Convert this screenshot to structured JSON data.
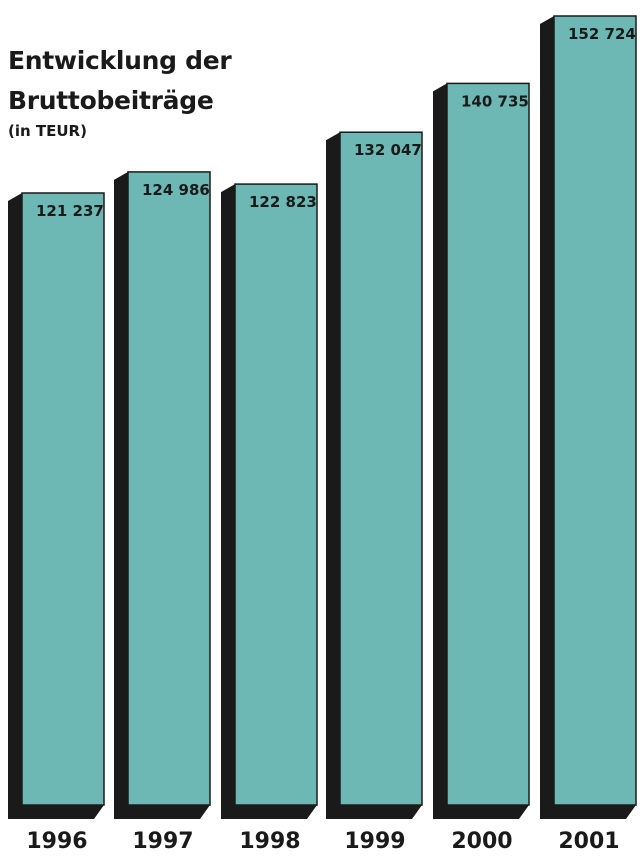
{
  "chart_data": {
    "type": "bar",
    "title_lines": [
      "Entwicklung der",
      "Bruttobeiträge"
    ],
    "subtitle": "(in TEUR)",
    "categories": [
      "1996",
      "1997",
      "1998",
      "1999",
      "2000",
      "2001"
    ],
    "values": [
      121237,
      124986,
      122823,
      132047,
      140735,
      152724
    ],
    "value_labels": [
      "121 237",
      "124 986",
      "122 823",
      "132 047",
      "140 735",
      "152 724"
    ],
    "xlabel": "",
    "ylabel": "",
    "grid": false,
    "legend": "none",
    "colors": {
      "bar_face": "#6db8b4",
      "bar_shadow": "#1a1a1a",
      "text": "#1a1a1a"
    }
  }
}
